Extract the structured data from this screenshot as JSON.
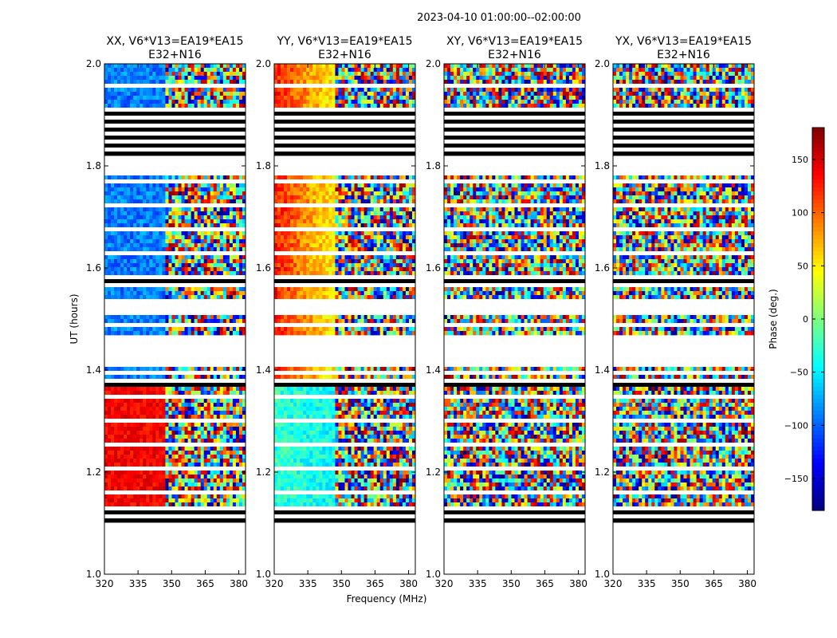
{
  "figure_title": "2023-04-10  01:00:00--02:00:00",
  "chart_data": {
    "type": "heatmap",
    "xlabel": "Frequency (MHz)",
    "ylabel": "UT (hours)",
    "xlim": [
      320,
      383
    ],
    "ylim": [
      1.0,
      2.0
    ],
    "x_ticks": [
      320,
      335,
      350,
      365,
      380
    ],
    "x_tick_labels": [
      "320",
      "335",
      "350",
      "365",
      "380"
    ],
    "y_ticks": [
      1.0,
      1.2,
      1.4,
      1.6,
      1.8,
      2.0
    ],
    "y_tick_labels": [
      "1.0",
      "1.2",
      "1.4",
      "1.6",
      "1.8",
      "2.0"
    ],
    "panels": [
      {
        "title_line1": "XX, V6*V13=EA19*EA15",
        "title_line2": "E32+N16",
        "mode": "XX"
      },
      {
        "title_line1": "YY, V6*V13=EA19*EA15",
        "title_line2": "E32+N16",
        "mode": "YY"
      },
      {
        "title_line1": "XY, V6*V13=EA19*EA15",
        "title_line2": "E32+N16",
        "mode": "XY"
      },
      {
        "title_line1": "YX, V6*V13=EA19*EA15",
        "title_line2": "E32+N16",
        "mode": "YX"
      }
    ],
    "colorbar": {
      "label": "Phase (deg.)",
      "min": -180,
      "max": 180,
      "ticks": [
        150,
        100,
        50,
        0,
        -50,
        -100,
        -150
      ],
      "tick_labels": [
        "150",
        "100",
        "50",
        "0",
        "−50",
        "−100",
        "−150"
      ],
      "colormap": "jet"
    },
    "flagged_ut_ranges": [
      [
        1.0,
        1.1
      ],
      [
        1.41,
        1.47
      ],
      [
        1.505,
        1.53
      ],
      [
        1.78,
        1.82
      ]
    ],
    "dense_flag_ut_ranges": [
      [
        1.1,
        1.135
      ],
      [
        1.37,
        1.385
      ],
      [
        1.565,
        1.585
      ],
      [
        1.82,
        1.905
      ]
    ],
    "bad_freq_start_mhz": 346
  }
}
